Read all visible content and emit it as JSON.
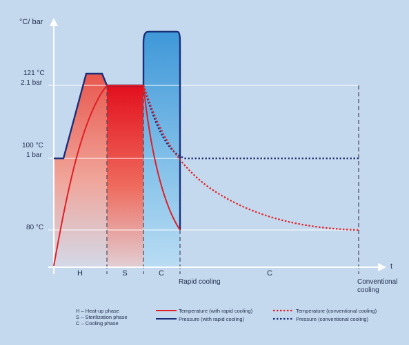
{
  "axes": {
    "y_label": "°C/ bar",
    "x_label": "t",
    "y_ticks": [
      {
        "line1": "121 °C",
        "line2": "2.1 bar"
      },
      {
        "line1": "100 °C",
        "line2": "1 bar"
      },
      {
        "line1": "80 °C",
        "line2": ""
      }
    ]
  },
  "phases": {
    "h": "H",
    "s": "S",
    "c_rapid": "C",
    "c_conventional": "C"
  },
  "annotations": {
    "rapid_cooling": "Rapid cooling",
    "conventional_line1": "Conventional",
    "conventional_line2": "cooling"
  },
  "legend": {
    "abbreviations": [
      "H – Heat-up phase",
      "S – Sterilization phase",
      "C – Cooling phase"
    ],
    "temp_rapid": "Temperature (with rapid cooling)",
    "pressure_rapid": "Pressure (with rapid cooling)",
    "temp_conventional": "Temperature (conventional cooling)",
    "pressure_conventional": "Pressure (conventional cooling)"
  },
  "colors": {
    "background": "#c5d9ee",
    "temperature": "#e01f26",
    "pressure": "#1a2f7a",
    "axis": "#ffffff",
    "text": "#1f2d4d"
  }
}
